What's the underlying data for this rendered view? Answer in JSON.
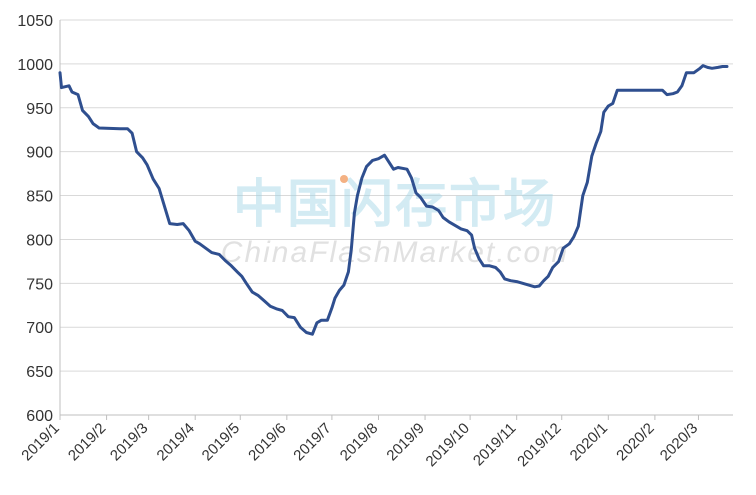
{
  "watermark": {
    "cn": "中国闪存市场",
    "en": "ChinaFlashMarket.com"
  },
  "colors": {
    "line": "#2f4f8f",
    "grid": "#d9d9d9",
    "axis": "#bfbfbf",
    "dot": "#f4b183"
  },
  "chart_data": {
    "type": "line",
    "title": "",
    "xlabel": "",
    "ylabel": "",
    "ylim": [
      600,
      1050
    ],
    "yticks": [
      600,
      650,
      700,
      750,
      800,
      850,
      900,
      950,
      1000,
      1050
    ],
    "xticks": [
      "2019/1",
      "2019/2",
      "2019/3",
      "2019/4",
      "2019/5",
      "2019/6",
      "2019/7",
      "2019/8",
      "2019/9",
      "2019/10",
      "2019/11",
      "2019/12",
      "2020/1",
      "2020/2",
      "2020/3"
    ],
    "grid": "horizontal",
    "legend": "none",
    "series": [
      {
        "name": "",
        "points": [
          [
            "2019-01-01",
            990
          ],
          [
            "2019-01-02",
            973
          ],
          [
            "2019-01-07",
            975
          ],
          [
            "2019-01-09",
            968
          ],
          [
            "2019-01-13",
            965
          ],
          [
            "2019-01-16",
            947
          ],
          [
            "2019-01-20",
            940
          ],
          [
            "2019-01-23",
            932
          ],
          [
            "2019-01-27",
            927
          ],
          [
            "2019-02-10",
            926
          ],
          [
            "2019-02-15",
            926
          ],
          [
            "2019-02-18",
            921
          ],
          [
            "2019-02-21",
            900
          ],
          [
            "2019-02-25",
            893
          ],
          [
            "2019-02-28",
            885
          ],
          [
            "2019-03-04",
            869
          ],
          [
            "2019-03-08",
            858
          ],
          [
            "2019-03-12",
            835
          ],
          [
            "2019-03-15",
            818
          ],
          [
            "2019-03-20",
            817
          ],
          [
            "2019-03-24",
            818
          ],
          [
            "2019-03-28",
            810
          ],
          [
            "2019-04-01",
            798
          ],
          [
            "2019-04-04",
            795
          ],
          [
            "2019-04-08",
            790
          ],
          [
            "2019-04-12",
            785
          ],
          [
            "2019-04-17",
            783
          ],
          [
            "2019-04-21",
            776
          ],
          [
            "2019-04-25",
            770
          ],
          [
            "2019-04-29",
            763
          ],
          [
            "2019-05-02",
            758
          ],
          [
            "2019-05-05",
            750
          ],
          [
            "2019-05-09",
            740
          ],
          [
            "2019-05-13",
            736
          ],
          [
            "2019-05-17",
            730
          ],
          [
            "2019-05-21",
            724
          ],
          [
            "2019-05-25",
            721
          ],
          [
            "2019-05-29",
            719
          ],
          [
            "2019-06-02",
            712
          ],
          [
            "2019-06-06",
            711
          ],
          [
            "2019-06-10",
            700
          ],
          [
            "2019-06-14",
            694
          ],
          [
            "2019-06-18",
            692
          ],
          [
            "2019-06-21",
            705
          ],
          [
            "2019-06-24",
            708
          ],
          [
            "2019-06-28",
            708
          ],
          [
            "2019-07-01",
            722
          ],
          [
            "2019-07-03",
            733
          ],
          [
            "2019-07-06",
            742
          ],
          [
            "2019-07-09",
            748
          ],
          [
            "2019-07-12",
            763
          ],
          [
            "2019-07-14",
            790
          ],
          [
            "2019-07-16",
            830
          ],
          [
            "2019-07-18",
            850
          ],
          [
            "2019-07-21",
            870
          ],
          [
            "2019-07-24",
            883
          ],
          [
            "2019-07-28",
            890
          ],
          [
            "2019-08-01",
            892
          ],
          [
            "2019-08-05",
            896
          ],
          [
            "2019-08-08",
            888
          ],
          [
            "2019-08-11",
            880
          ],
          [
            "2019-08-14",
            882
          ],
          [
            "2019-08-20",
            880
          ],
          [
            "2019-08-23",
            870
          ],
          [
            "2019-08-26",
            853
          ],
          [
            "2019-08-29",
            848
          ],
          [
            "2019-09-02",
            838
          ],
          [
            "2019-09-06",
            837
          ],
          [
            "2019-09-10",
            833
          ],
          [
            "2019-09-13",
            825
          ],
          [
            "2019-09-17",
            820
          ],
          [
            "2019-09-21",
            816
          ],
          [
            "2019-09-25",
            812
          ],
          [
            "2019-09-29",
            810
          ],
          [
            "2019-10-02",
            805
          ],
          [
            "2019-10-04",
            790
          ],
          [
            "2019-10-07",
            778
          ],
          [
            "2019-10-10",
            770
          ],
          [
            "2019-10-14",
            770
          ],
          [
            "2019-10-18",
            768
          ],
          [
            "2019-10-21",
            763
          ],
          [
            "2019-10-24",
            755
          ],
          [
            "2019-10-28",
            753
          ],
          [
            "2019-11-01",
            752
          ],
          [
            "2019-11-05",
            750
          ],
          [
            "2019-11-09",
            748
          ],
          [
            "2019-11-13",
            746
          ],
          [
            "2019-11-16",
            747
          ],
          [
            "2019-11-19",
            753
          ],
          [
            "2019-11-22",
            758
          ],
          [
            "2019-11-25",
            768
          ],
          [
            "2019-11-29",
            775
          ],
          [
            "2019-12-02",
            790
          ],
          [
            "2019-12-06",
            795
          ],
          [
            "2019-12-09",
            803
          ],
          [
            "2019-12-12",
            815
          ],
          [
            "2019-12-15",
            850
          ],
          [
            "2019-12-18",
            865
          ],
          [
            "2019-12-21",
            895
          ],
          [
            "2019-12-24",
            910
          ],
          [
            "2019-12-27",
            923
          ],
          [
            "2019-12-29",
            945
          ],
          [
            "2020-01-01",
            952
          ],
          [
            "2020-01-04",
            955
          ],
          [
            "2020-01-07",
            970
          ],
          [
            "2020-01-12",
            970
          ],
          [
            "2020-01-25",
            970
          ],
          [
            "2020-02-06",
            970
          ],
          [
            "2020-02-09",
            965
          ],
          [
            "2020-02-13",
            966
          ],
          [
            "2020-02-16",
            968
          ],
          [
            "2020-02-19",
            975
          ],
          [
            "2020-02-22",
            990
          ],
          [
            "2020-02-27",
            990
          ],
          [
            "2020-03-02",
            995
          ],
          [
            "2020-03-04",
            998
          ],
          [
            "2020-03-07",
            996
          ],
          [
            "2020-03-10",
            995
          ],
          [
            "2020-03-14",
            996
          ],
          [
            "2020-03-17",
            997
          ],
          [
            "2020-03-20",
            997
          ]
        ]
      }
    ]
  }
}
